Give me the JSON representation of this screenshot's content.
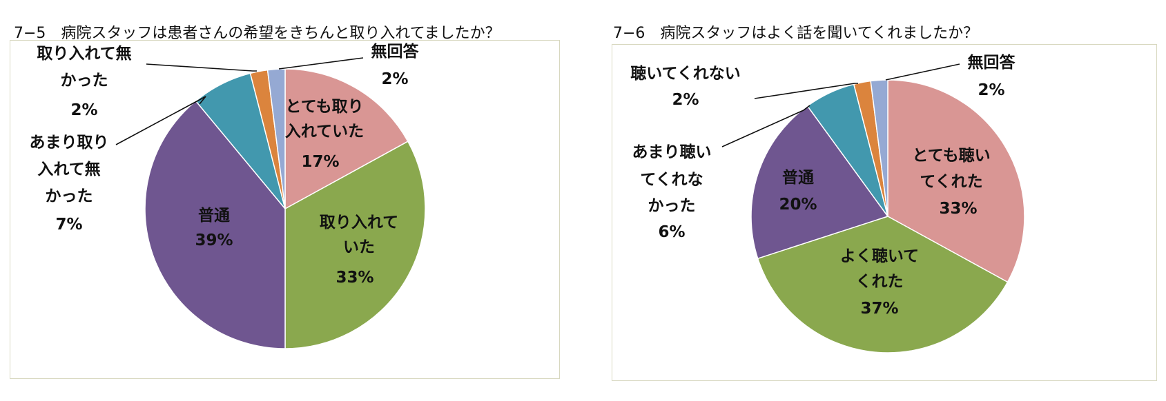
{
  "colors": {
    "pink": "#d99694",
    "green": "#8aa84e",
    "purple": "#6f5690",
    "teal": "#4298ae",
    "orange": "#db843d",
    "lavender": "#95a9d3",
    "frame": "#d8d8c0"
  },
  "chart_data": [
    {
      "type": "pie",
      "title": "7−5　病院スタッフは患者さんの希望をきちんと取り入れてましたか？",
      "start_angle": "12 o'clock, clockwise",
      "slices": [
        {
          "label": "とても取り入れていた",
          "label_lines": [
            "とても取り",
            "入れていた"
          ],
          "percent_label": "17%",
          "value": 17,
          "color": "pink"
        },
        {
          "label": "取り入れていた",
          "label_lines": [
            "取り入れて",
            "いた"
          ],
          "percent_label": "33%",
          "value": 33,
          "color": "green"
        },
        {
          "label": "普通",
          "label_lines": [
            "普通"
          ],
          "percent_label": "39%",
          "value": 39,
          "color": "purple"
        },
        {
          "label": "あまり取り入れて無かった",
          "label_lines": [
            "あまり取り",
            "入れて無",
            "かった"
          ],
          "percent_label": "7%",
          "value": 7,
          "color": "teal"
        },
        {
          "label": "取り入れて無かった",
          "label_lines": [
            "取り入れて無",
            "かった"
          ],
          "percent_label": "2%",
          "value": 2,
          "color": "orange"
        },
        {
          "label": "無回答",
          "label_lines": [
            "無回答"
          ],
          "percent_label": "2%",
          "value": 2,
          "color": "lavender"
        }
      ]
    },
    {
      "type": "pie",
      "title": "7−6　病院スタッフはよく話を聞いてくれましたか？",
      "start_angle": "12 o'clock, clockwise",
      "slices": [
        {
          "label": "とても聴いてくれた",
          "label_lines": [
            "とても聴い",
            "てくれた"
          ],
          "percent_label": "33%",
          "value": 33,
          "color": "pink"
        },
        {
          "label": "よく聴いてくれた",
          "label_lines": [
            "よく聴いて",
            "くれた"
          ],
          "percent_label": "37%",
          "value": 37,
          "color": "green"
        },
        {
          "label": "普通",
          "label_lines": [
            "普通"
          ],
          "percent_label": "20%",
          "value": 20,
          "color": "purple"
        },
        {
          "label": "あまり聴いてくれなかった",
          "label_lines": [
            "あまり聴い",
            "てくれな",
            "かった"
          ],
          "percent_label": "6%",
          "value": 6,
          "color": "teal"
        },
        {
          "label": "聴いてくれない",
          "label_lines": [
            "聴いてくれない"
          ],
          "percent_label": "2%",
          "value": 2,
          "color": "orange"
        },
        {
          "label": "無回答",
          "label_lines": [
            "無回答"
          ],
          "percent_label": "2%",
          "value": 2,
          "color": "lavender"
        }
      ]
    }
  ]
}
